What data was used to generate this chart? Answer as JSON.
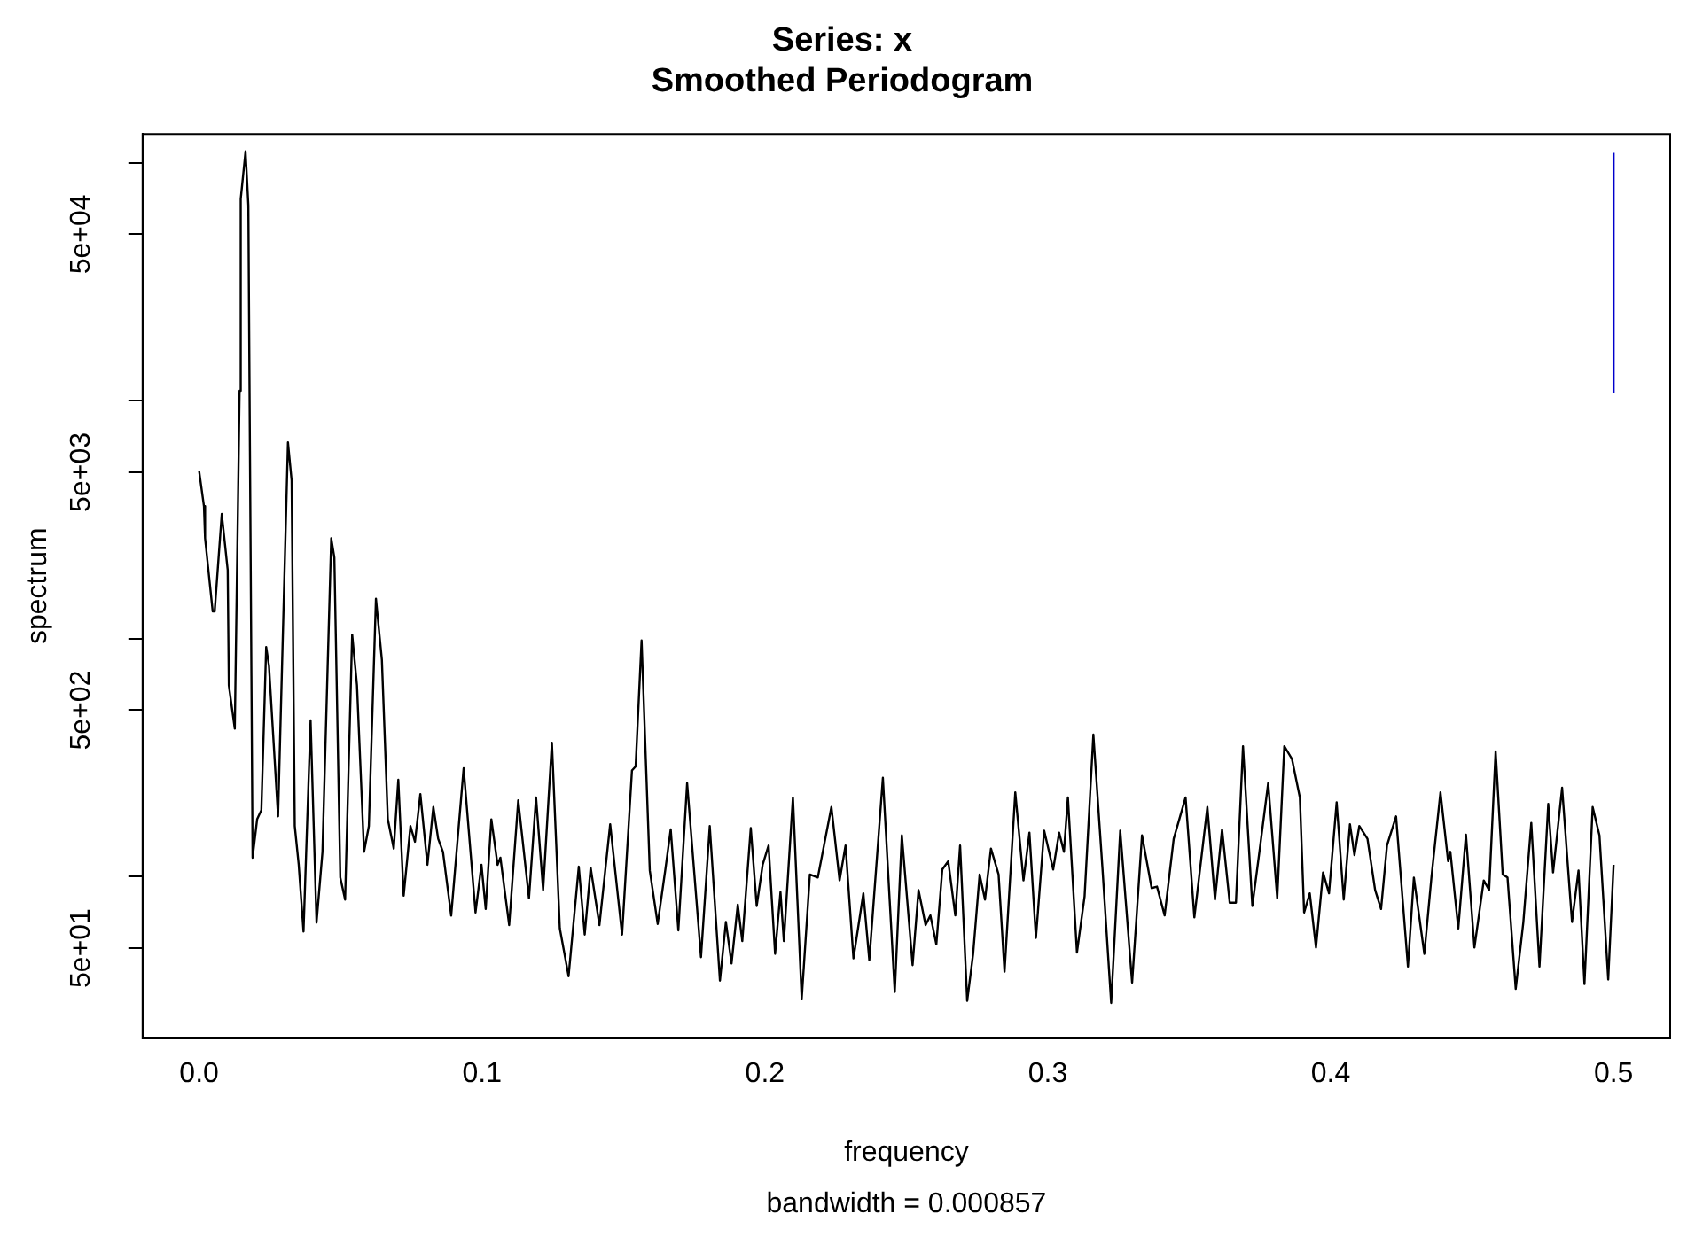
{
  "chart_data": {
    "type": "line",
    "title": "Series: x",
    "subtitle": "Smoothed Periodogram",
    "xlabel": "frequency",
    "ylabel": "spectrum",
    "annotations": [
      "bandwidth = 0.000857"
    ],
    "log": "y",
    "grid": false,
    "legend": false,
    "marker": "none",
    "line_style": "solid",
    "xlim": [
      -0.02,
      0.52
    ],
    "xticks": [
      {
        "value": 0,
        "label": "0.0"
      },
      0.1,
      0.2,
      0.3,
      0.4,
      0.5
    ],
    "ylim": [
      21,
      132000
    ],
    "yticks": [
      {
        "value": 50,
        "label": "5e+01"
      },
      {
        "value": 100,
        "label": null
      },
      {
        "value": 500,
        "label": "5e+02"
      },
      {
        "value": 1000,
        "label": null
      },
      {
        "value": 5000,
        "label": "5e+03"
      },
      {
        "value": 10000,
        "label": null
      },
      {
        "value": 50000,
        "label": "5e+04"
      },
      {
        "value": 100000,
        "label": null
      }
    ],
    "series": [
      {
        "color": "#000000",
        "x": [
          0,
          0.0017,
          0.0021,
          0.0048,
          0.0055,
          0.008,
          0.0101,
          0.0105,
          0.0126,
          0.0143,
          0.0147,
          0.0164,
          0.0174,
          0.0189,
          0.0205,
          0.022,
          0.0237,
          0.0247,
          0.0279,
          0.0314,
          0.0327,
          0.0338,
          0.0352,
          0.0369,
          0.0394,
          0.0415,
          0.0436,
          0.0467,
          0.0478,
          0.0499,
          0.0516,
          0.0541,
          0.0558,
          0.0583,
          0.06,
          0.0625,
          0.0646,
          0.0667,
          0.0688,
          0.0704,
          0.0723,
          0.0747,
          0.0763,
          0.0782,
          0.0807,
          0.0828,
          0.0845,
          0.0862,
          0.0891,
          0.0935,
          0.0977,
          0.0998,
          0.1013,
          0.1033,
          0.1055,
          0.1065,
          0.1096,
          0.1128,
          0.1166,
          0.1191,
          0.1216,
          0.1247,
          0.1275,
          0.1306,
          0.1342,
          0.1363,
          0.1384,
          0.1415,
          0.1453,
          0.1495,
          0.153,
          0.1543,
          0.1564,
          0.1593,
          0.1621,
          0.1648,
          0.1667,
          0.1694,
          0.1725,
          0.1774,
          0.1805,
          0.1841,
          0.1862,
          0.1882,
          0.1904,
          0.192,
          0.195,
          0.1971,
          0.1992,
          0.2013,
          0.2036,
          0.2055,
          0.2067,
          0.2099,
          0.213,
          0.2159,
          0.2187,
          0.2235,
          0.2264,
          0.2285,
          0.2313,
          0.2348,
          0.2369,
          0.2417,
          0.2459,
          0.2484,
          0.2522,
          0.2543,
          0.2568,
          0.2585,
          0.2606,
          0.2627,
          0.2648,
          0.2673,
          0.269,
          0.2715,
          0.2736,
          0.2759,
          0.2778,
          0.2799,
          0.2826,
          0.2847,
          0.2885,
          0.2914,
          0.2935,
          0.2958,
          0.2987,
          0.3019,
          0.304,
          0.3057,
          0.3071,
          0.3103,
          0.313,
          0.3161,
          0.3193,
          0.3224,
          0.3256,
          0.3298,
          0.3333,
          0.3367,
          0.3386,
          0.3413,
          0.3445,
          0.3487,
          0.3518,
          0.3564,
          0.3591,
          0.3616,
          0.3643,
          0.3665,
          0.369,
          0.3723,
          0.3748,
          0.3779,
          0.3811,
          0.3836,
          0.3863,
          0.3891,
          0.3906,
          0.3926,
          0.3948,
          0.3973,
          0.3994,
          0.4021,
          0.4046,
          0.4068,
          0.4084,
          0.4101,
          0.413,
          0.4157,
          0.4178,
          0.4199,
          0.4231,
          0.4273,
          0.4294,
          0.4331,
          0.4356,
          0.4388,
          0.4415,
          0.4423,
          0.4451,
          0.4478,
          0.4508,
          0.4541,
          0.456,
          0.4583,
          0.4608,
          0.4625,
          0.4654,
          0.4681,
          0.4709,
          0.4738,
          0.4769,
          0.4786,
          0.4818,
          0.4853,
          0.4876,
          0.4897,
          0.4926,
          0.495,
          0.4981,
          0.5
        ],
        "values": [
          5060,
          3600,
          2640,
          1300,
          1300,
          3340,
          1940,
          637,
          418,
          11000,
          70300,
          111600,
          66100,
          120,
          174,
          190,
          922,
          767,
          179,
          6680,
          4610,
          163,
          112,
          58.7,
          453,
          64,
          127,
          2640,
          2190,
          99,
          80,
          1040,
          637,
          127,
          163,
          1470,
          815,
          174,
          131,
          255,
          83,
          163,
          140,
          222,
          112,
          196,
          144,
          127,
          68.5,
          285,
          70.6,
          112,
          73,
          174,
          112,
          120,
          62.5,
          209,
          81,
          215,
          87.8,
          365,
          60.5,
          38.1,
          110,
          57,
          109,
          62.5,
          166,
          57,
          279,
          290,
          982,
          106,
          63.2,
          107,
          158,
          59.4,
          247,
          45.8,
          163,
          36.5,
          64.4,
          43.1,
          76.2,
          53.5,
          160,
          75.2,
          112,
          135,
          47.3,
          86,
          53.5,
          215,
          30.6,
          102,
          99,
          196,
          96.3,
          135,
          45.3,
          85,
          44.5,
          260,
          32.7,
          149,
          42.4,
          87.8,
          62.5,
          68.6,
          51.9,
          107,
          116,
          68.6,
          135,
          30,
          47.3,
          102,
          80,
          131,
          102,
          39.8,
          226,
          96.3,
          153,
          55.2,
          156,
          107,
          153,
          127,
          215,
          47.9,
          82.6,
          395,
          109,
          29.4,
          156,
          35.8,
          149,
          89.4,
          90.7,
          68.6,
          144,
          215,
          67.3,
          196,
          80,
          158,
          77.6,
          77.6,
          353,
          75.2,
          127,
          247,
          81,
          353,
          312,
          215,
          70.6,
          85,
          50.3,
          104,
          85,
          205,
          80,
          166,
          123,
          163,
          144,
          87.8,
          73,
          135,
          179,
          41.8,
          99,
          47.3,
          99,
          226,
          116,
          127,
          60.5,
          150,
          50.3,
          96.3,
          87.8,
          336,
          102,
          99,
          33.7,
          64.4,
          168,
          41.8,
          202,
          104,
          236,
          64.4,
          106,
          35.3,
          196,
          149,
          36.9,
          112
        ]
      },
      {
        "color": "#0000cc",
        "x": [
          0.5,
          0.5
        ],
        "values": [
          10800,
          110000
        ]
      }
    ]
  }
}
